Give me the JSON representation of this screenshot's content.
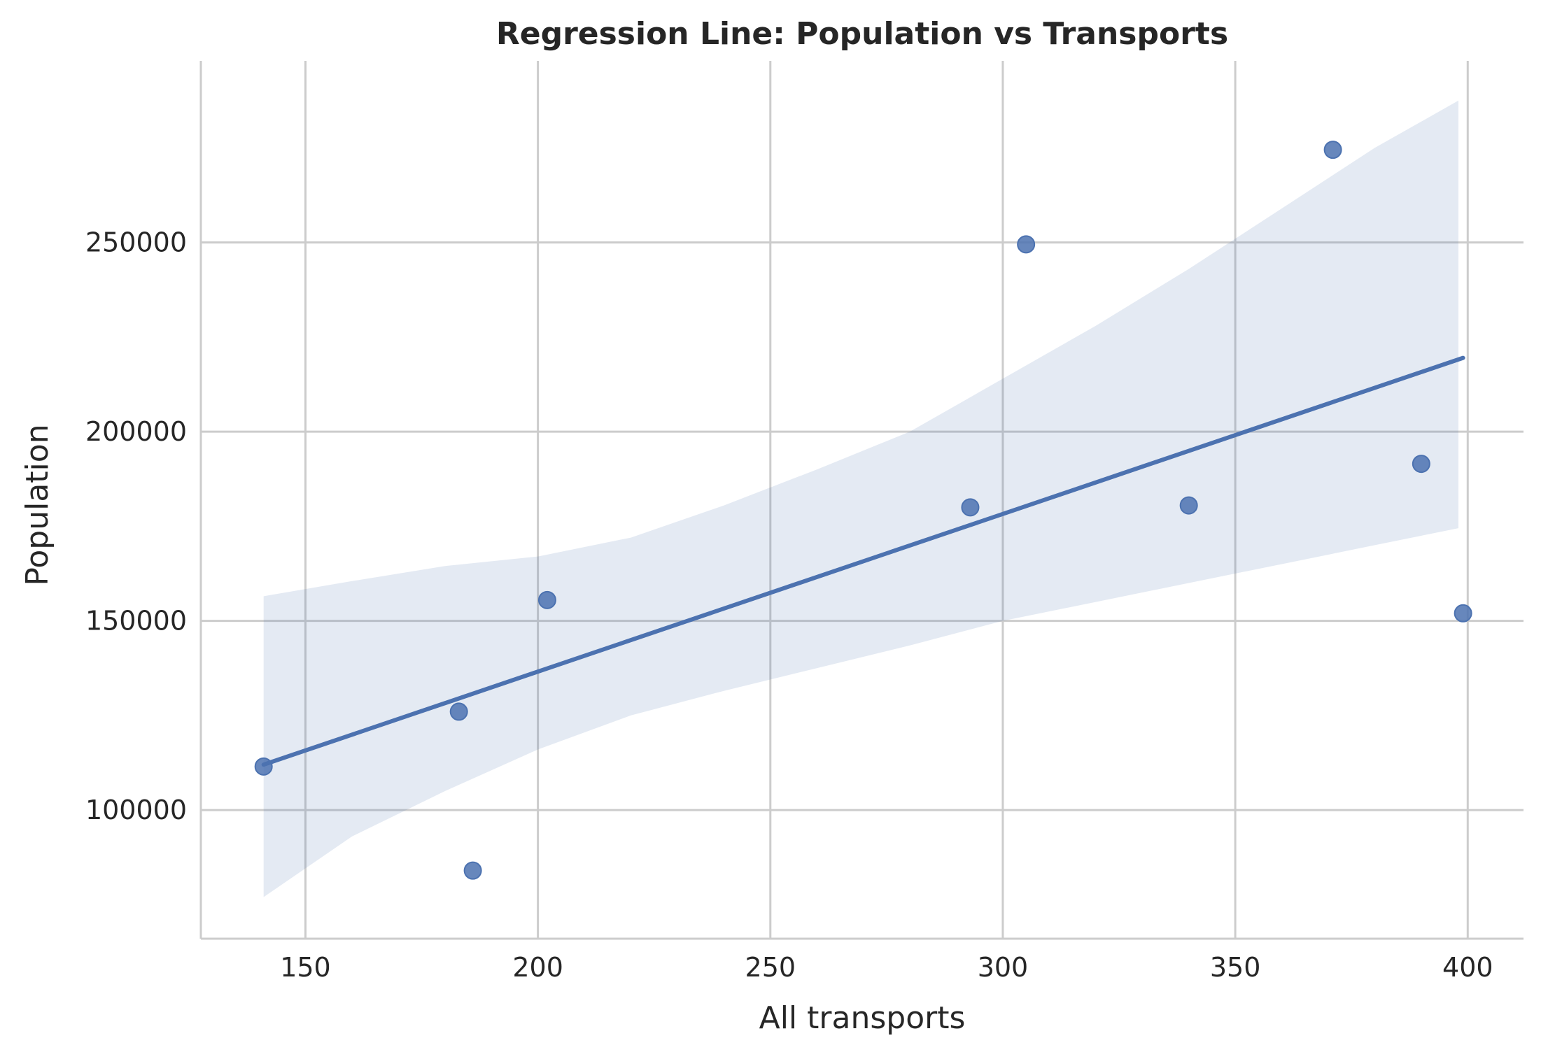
{
  "chart_data": {
    "type": "scatter",
    "title": "Regression Line: Population vs Transports",
    "xlabel": "All transports",
    "ylabel": "Population",
    "xlim": [
      127.5,
      412
    ],
    "ylim": [
      66000,
      298000
    ],
    "xticks": [
      150,
      200,
      250,
      300,
      350,
      400
    ],
    "yticks": [
      100000,
      150000,
      200000,
      250000
    ],
    "grid": true,
    "points": [
      {
        "x": 141,
        "y": 111500
      },
      {
        "x": 183,
        "y": 126000
      },
      {
        "x": 186,
        "y": 84000
      },
      {
        "x": 202,
        "y": 155500
      },
      {
        "x": 293,
        "y": 180000
      },
      {
        "x": 305,
        "y": 249500
      },
      {
        "x": 340,
        "y": 180500
      },
      {
        "x": 371,
        "y": 274500
      },
      {
        "x": 390,
        "y": 191500
      },
      {
        "x": 399,
        "y": 152000
      }
    ],
    "regression_line": {
      "x": [
        141,
        399
      ],
      "y": [
        112000,
        219500
      ]
    },
    "confidence_band": {
      "x": [
        141,
        160,
        180,
        200,
        220,
        240,
        260,
        280,
        300,
        320,
        340,
        360,
        380,
        398
      ],
      "lower": [
        77000,
        93000,
        105000,
        116000,
        125000,
        131500,
        137500,
        143500,
        150000,
        155000,
        160000,
        165000,
        170000,
        174500
      ],
      "upper": [
        156500,
        160500,
        164500,
        167000,
        172000,
        180500,
        190000,
        200000,
        214000,
        228000,
        243000,
        259000,
        275000,
        287500
      ]
    },
    "colors": {
      "point": "#4c72b0",
      "line": "#4c72b0",
      "band": "#4c72b0"
    }
  }
}
